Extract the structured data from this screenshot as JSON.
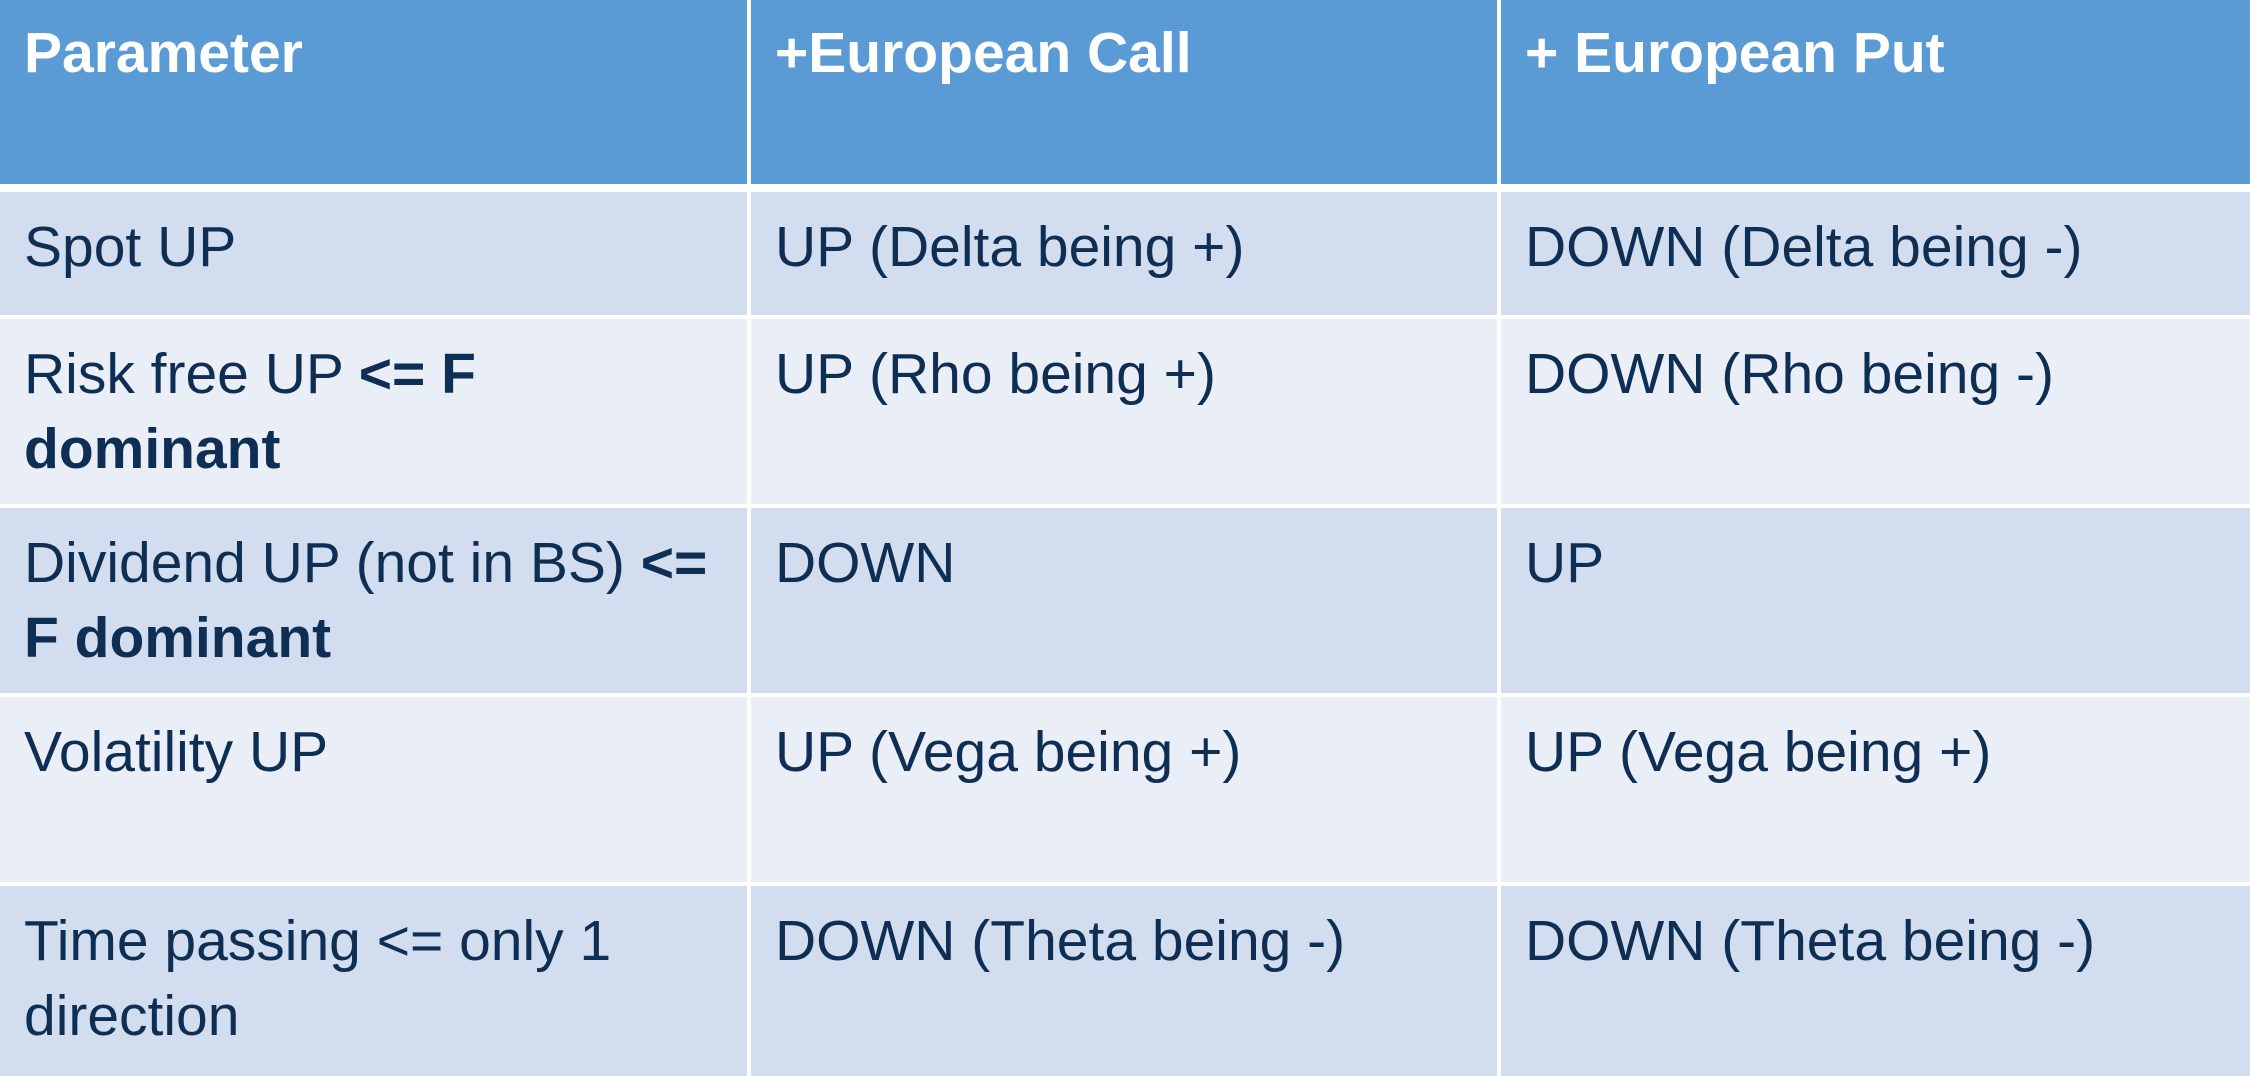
{
  "table": {
    "headers": [
      "Parameter",
      "+European Call",
      "+ European Put"
    ],
    "rows": [
      {
        "parameter": "Spot UP",
        "parameter_bold": "",
        "call": "UP (Delta being +)",
        "put": "DOWN (Delta being -)"
      },
      {
        "parameter": "Risk free UP ",
        "parameter_bold": "<= F dominant",
        "call": "UP (Rho being +)",
        "put": "DOWN (Rho being -)"
      },
      {
        "parameter": "Dividend UP (not in BS) ",
        "parameter_bold": "<= F dominant",
        "call": "DOWN",
        "put": "UP"
      },
      {
        "parameter": "Volatility UP",
        "parameter_bold": "",
        "call": "UP (Vega being +)",
        "put": "UP (Vega being +)"
      },
      {
        "parameter": "Time passing <= only 1 direction",
        "parameter_bold": "",
        "call": "DOWN (Theta being -)",
        "put": "DOWN (Theta being -)"
      }
    ]
  },
  "colors": {
    "header_bg": "#5b9bd5",
    "row_dark": "#d2deef",
    "row_light": "#eaeff7",
    "text": "#0e2e53"
  }
}
